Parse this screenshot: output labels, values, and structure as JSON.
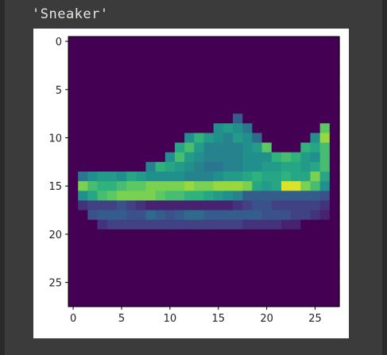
{
  "output_cell": {
    "text": "'Sneaker'"
  },
  "chart_data": {
    "type": "heatmap",
    "title": "",
    "xlabel": "",
    "ylabel": "",
    "colormap": "viridis",
    "grid": false,
    "xlim": [
      -0.5,
      27.5
    ],
    "ylim": [
      27.5,
      -0.5
    ],
    "x_ticks": [
      "0",
      "5",
      "10",
      "15",
      "20",
      "25"
    ],
    "y_ticks": [
      "0",
      "5",
      "10",
      "15",
      "20",
      "25"
    ],
    "image_rows": 28,
    "image_cols": 28,
    "rows": [
      [
        0,
        0,
        0,
        0,
        0,
        0,
        0,
        0,
        0,
        0,
        0,
        0,
        0,
        0,
        0,
        0,
        0,
        0,
        0,
        0,
        0,
        0,
        0,
        0,
        0,
        0,
        0,
        0
      ],
      [
        0,
        0,
        0,
        0,
        0,
        0,
        0,
        0,
        0,
        0,
        0,
        0,
        0,
        0,
        0,
        0,
        0,
        0,
        0,
        0,
        0,
        0,
        0,
        0,
        0,
        0,
        0,
        0
      ],
      [
        0,
        0,
        0,
        0,
        0,
        0,
        0,
        0,
        0,
        0,
        0,
        0,
        0,
        0,
        0,
        0,
        0,
        0,
        0,
        0,
        0,
        0,
        0,
        0,
        0,
        0,
        0,
        0
      ],
      [
        0,
        0,
        0,
        0,
        0,
        0,
        0,
        0,
        0,
        0,
        0,
        0,
        0,
        0,
        0,
        0,
        0,
        0,
        0,
        0,
        0,
        0,
        0,
        0,
        0,
        0,
        0,
        0
      ],
      [
        0,
        0,
        0,
        0,
        0,
        0,
        0,
        0,
        0,
        0,
        0,
        0,
        0,
        0,
        0,
        0,
        0,
        0,
        0,
        0,
        0,
        0,
        0,
        0,
        0,
        0,
        0,
        0
      ],
      [
        0,
        0,
        0,
        0,
        0,
        0,
        0,
        0,
        0,
        0,
        0,
        0,
        0,
        0,
        0,
        0,
        0,
        0,
        0,
        0,
        0,
        0,
        0,
        0,
        0,
        0,
        0,
        0
      ],
      [
        0,
        0,
        0,
        0,
        0,
        0,
        0,
        0,
        0,
        0,
        0,
        0,
        0,
        0,
        0,
        0,
        0,
        0,
        0,
        0,
        0,
        0,
        0,
        0,
        0,
        0,
        0,
        0
      ],
      [
        0,
        0,
        0,
        0,
        0,
        0,
        0,
        0,
        0,
        0,
        0,
        0,
        0,
        0,
        0,
        0,
        0,
        0,
        0,
        0,
        0,
        0,
        0,
        0,
        0,
        0,
        0,
        0
      ],
      [
        0,
        0,
        0,
        0,
        0,
        0,
        0,
        0,
        0,
        0,
        0,
        0,
        0,
        0,
        0,
        0,
        0,
        0.3,
        0,
        0,
        0,
        0,
        0,
        0,
        0,
        0,
        0,
        0
      ],
      [
        0,
        0,
        0,
        0,
        0,
        0,
        0,
        0,
        0,
        0,
        0,
        0,
        0,
        0,
        0,
        0.5,
        0.55,
        0.5,
        0.4,
        0,
        0,
        0,
        0,
        0,
        0,
        0,
        0.75,
        0
      ],
      [
        0,
        0,
        0,
        0,
        0,
        0,
        0,
        0,
        0,
        0,
        0,
        0,
        0.5,
        0.65,
        0.55,
        0.5,
        0.45,
        0.55,
        0.5,
        0.35,
        0,
        0,
        0,
        0,
        0,
        0.5,
        0.85,
        0
      ],
      [
        0,
        0,
        0,
        0,
        0,
        0,
        0,
        0,
        0,
        0,
        0,
        0.6,
        0.7,
        0.55,
        0.45,
        0.45,
        0.45,
        0.45,
        0.5,
        0.55,
        0.75,
        0,
        0,
        0,
        0.65,
        0.6,
        0.7,
        0
      ],
      [
        0,
        0,
        0,
        0,
        0,
        0,
        0,
        0,
        0,
        0,
        0.5,
        0.7,
        0.55,
        0.5,
        0.45,
        0.45,
        0.45,
        0.45,
        0.5,
        0.5,
        0.5,
        0.65,
        0.7,
        0.65,
        0.55,
        0.5,
        0.7,
        0
      ],
      [
        0,
        0,
        0,
        0,
        0,
        0,
        0,
        0,
        0.45,
        0.65,
        0.6,
        0.55,
        0.5,
        0.45,
        0.4,
        0.4,
        0.45,
        0.45,
        0.5,
        0.5,
        0.55,
        0.55,
        0.6,
        0.6,
        0.55,
        0.6,
        0.7,
        0
      ],
      [
        0,
        0.4,
        0.5,
        0.55,
        0.55,
        0.5,
        0.6,
        0.55,
        0.5,
        0.5,
        0.5,
        0.5,
        0.45,
        0.45,
        0.45,
        0.5,
        0.55,
        0.55,
        0.6,
        0.65,
        0.6,
        0.6,
        0.65,
        0.6,
        0.6,
        0.8,
        0.6,
        0
      ],
      [
        0,
        0.8,
        0.7,
        0.65,
        0.65,
        0.7,
        0.75,
        0.75,
        0.8,
        0.8,
        0.8,
        0.8,
        0.85,
        0.8,
        0.8,
        0.85,
        0.85,
        0.85,
        0.8,
        0.6,
        0.55,
        0.6,
        0.95,
        0.95,
        0.8,
        0.7,
        0.5,
        0
      ],
      [
        0,
        0.5,
        0.6,
        0.7,
        0.75,
        0.8,
        0.8,
        0.8,
        0.8,
        0.75,
        0.7,
        0.7,
        0.65,
        0.65,
        0.6,
        0.55,
        0.5,
        0.45,
        0.3,
        0.3,
        0.3,
        0.3,
        0.3,
        0.3,
        0.3,
        0.3,
        0.25,
        0
      ],
      [
        0,
        0.15,
        0.2,
        0.2,
        0.2,
        0.25,
        0.2,
        0.15,
        0.1,
        0.1,
        0.1,
        0.1,
        0.1,
        0.1,
        0.1,
        0.1,
        0.1,
        0.15,
        0.2,
        0.25,
        0.25,
        0.2,
        0.2,
        0.2,
        0.2,
        0.2,
        0.15,
        0
      ],
      [
        0,
        0,
        0.25,
        0.3,
        0.3,
        0.3,
        0.25,
        0.25,
        0.35,
        0.3,
        0.25,
        0.3,
        0.35,
        0.35,
        0.3,
        0.3,
        0.3,
        0.3,
        0.3,
        0.3,
        0.25,
        0.25,
        0.25,
        0.2,
        0.2,
        0.15,
        0.1,
        0
      ],
      [
        0,
        0,
        0,
        0.15,
        0.2,
        0.2,
        0.2,
        0.2,
        0.2,
        0.2,
        0.2,
        0.2,
        0.2,
        0.2,
        0.2,
        0.2,
        0.2,
        0.2,
        0.15,
        0.15,
        0.15,
        0.15,
        0.1,
        0.1,
        0,
        0,
        0,
        0
      ],
      [
        0,
        0,
        0,
        0,
        0,
        0,
        0,
        0,
        0,
        0,
        0,
        0,
        0,
        0,
        0,
        0,
        0,
        0,
        0,
        0,
        0,
        0,
        0,
        0,
        0,
        0,
        0,
        0
      ],
      [
        0,
        0,
        0,
        0,
        0,
        0,
        0,
        0,
        0,
        0,
        0,
        0,
        0,
        0,
        0,
        0,
        0,
        0,
        0,
        0,
        0,
        0,
        0,
        0,
        0,
        0,
        0,
        0
      ],
      [
        0,
        0,
        0,
        0,
        0,
        0,
        0,
        0,
        0,
        0,
        0,
        0,
        0,
        0,
        0,
        0,
        0,
        0,
        0,
        0,
        0,
        0,
        0,
        0,
        0,
        0,
        0,
        0
      ],
      [
        0,
        0,
        0,
        0,
        0,
        0,
        0,
        0,
        0,
        0,
        0,
        0,
        0,
        0,
        0,
        0,
        0,
        0,
        0,
        0,
        0,
        0,
        0,
        0,
        0,
        0,
        0,
        0
      ],
      [
        0,
        0,
        0,
        0,
        0,
        0,
        0,
        0,
        0,
        0,
        0,
        0,
        0,
        0,
        0,
        0,
        0,
        0,
        0,
        0,
        0,
        0,
        0,
        0,
        0,
        0,
        0,
        0
      ],
      [
        0,
        0,
        0,
        0,
        0,
        0,
        0,
        0,
        0,
        0,
        0,
        0,
        0,
        0,
        0,
        0,
        0,
        0,
        0,
        0,
        0,
        0,
        0,
        0,
        0,
        0,
        0,
        0
      ],
      [
        0,
        0,
        0,
        0,
        0,
        0,
        0,
        0,
        0,
        0,
        0,
        0,
        0,
        0,
        0,
        0,
        0,
        0,
        0,
        0,
        0,
        0,
        0,
        0,
        0,
        0,
        0,
        0
      ],
      [
        0,
        0,
        0,
        0,
        0,
        0,
        0,
        0,
        0,
        0,
        0,
        0,
        0,
        0,
        0,
        0,
        0,
        0,
        0,
        0,
        0,
        0,
        0,
        0,
        0,
        0,
        0,
        0
      ]
    ]
  }
}
